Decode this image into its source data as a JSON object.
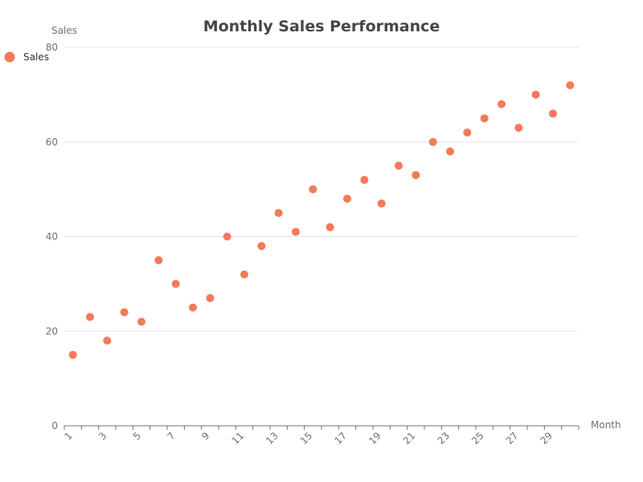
{
  "colors": {
    "series": "#f47a5a",
    "grid": "#e0e6f1",
    "axis": "#6e7079",
    "title": "#464646"
  },
  "chart_data": {
    "type": "scatter",
    "title": "Monthly Sales Performance",
    "xlabel": "Month",
    "ylabel": "Sales",
    "xlim": [
      0.5,
      30.5
    ],
    "ylim": [
      0,
      80
    ],
    "x_tick_labels": [
      "1",
      "3",
      "5",
      "7",
      "9",
      "11",
      "13",
      "15",
      "17",
      "19",
      "21",
      "23",
      "25",
      "27",
      "29"
    ],
    "y_ticks": [
      0,
      20,
      40,
      60,
      80
    ],
    "grid": true,
    "legend": "top-left",
    "series": [
      {
        "name": "Sales",
        "x": [
          1,
          2,
          3,
          4,
          5,
          6,
          7,
          8,
          9,
          10,
          11,
          12,
          13,
          14,
          15,
          16,
          17,
          18,
          19,
          20,
          21,
          22,
          23,
          24,
          25,
          26,
          27,
          28,
          29,
          30
        ],
        "y": [
          15,
          23,
          18,
          24,
          22,
          35,
          30,
          25,
          27,
          40,
          32,
          38,
          45,
          41,
          50,
          42,
          48,
          52,
          47,
          55,
          53,
          60,
          58,
          62,
          65,
          68,
          63,
          70,
          66,
          72
        ]
      }
    ]
  }
}
